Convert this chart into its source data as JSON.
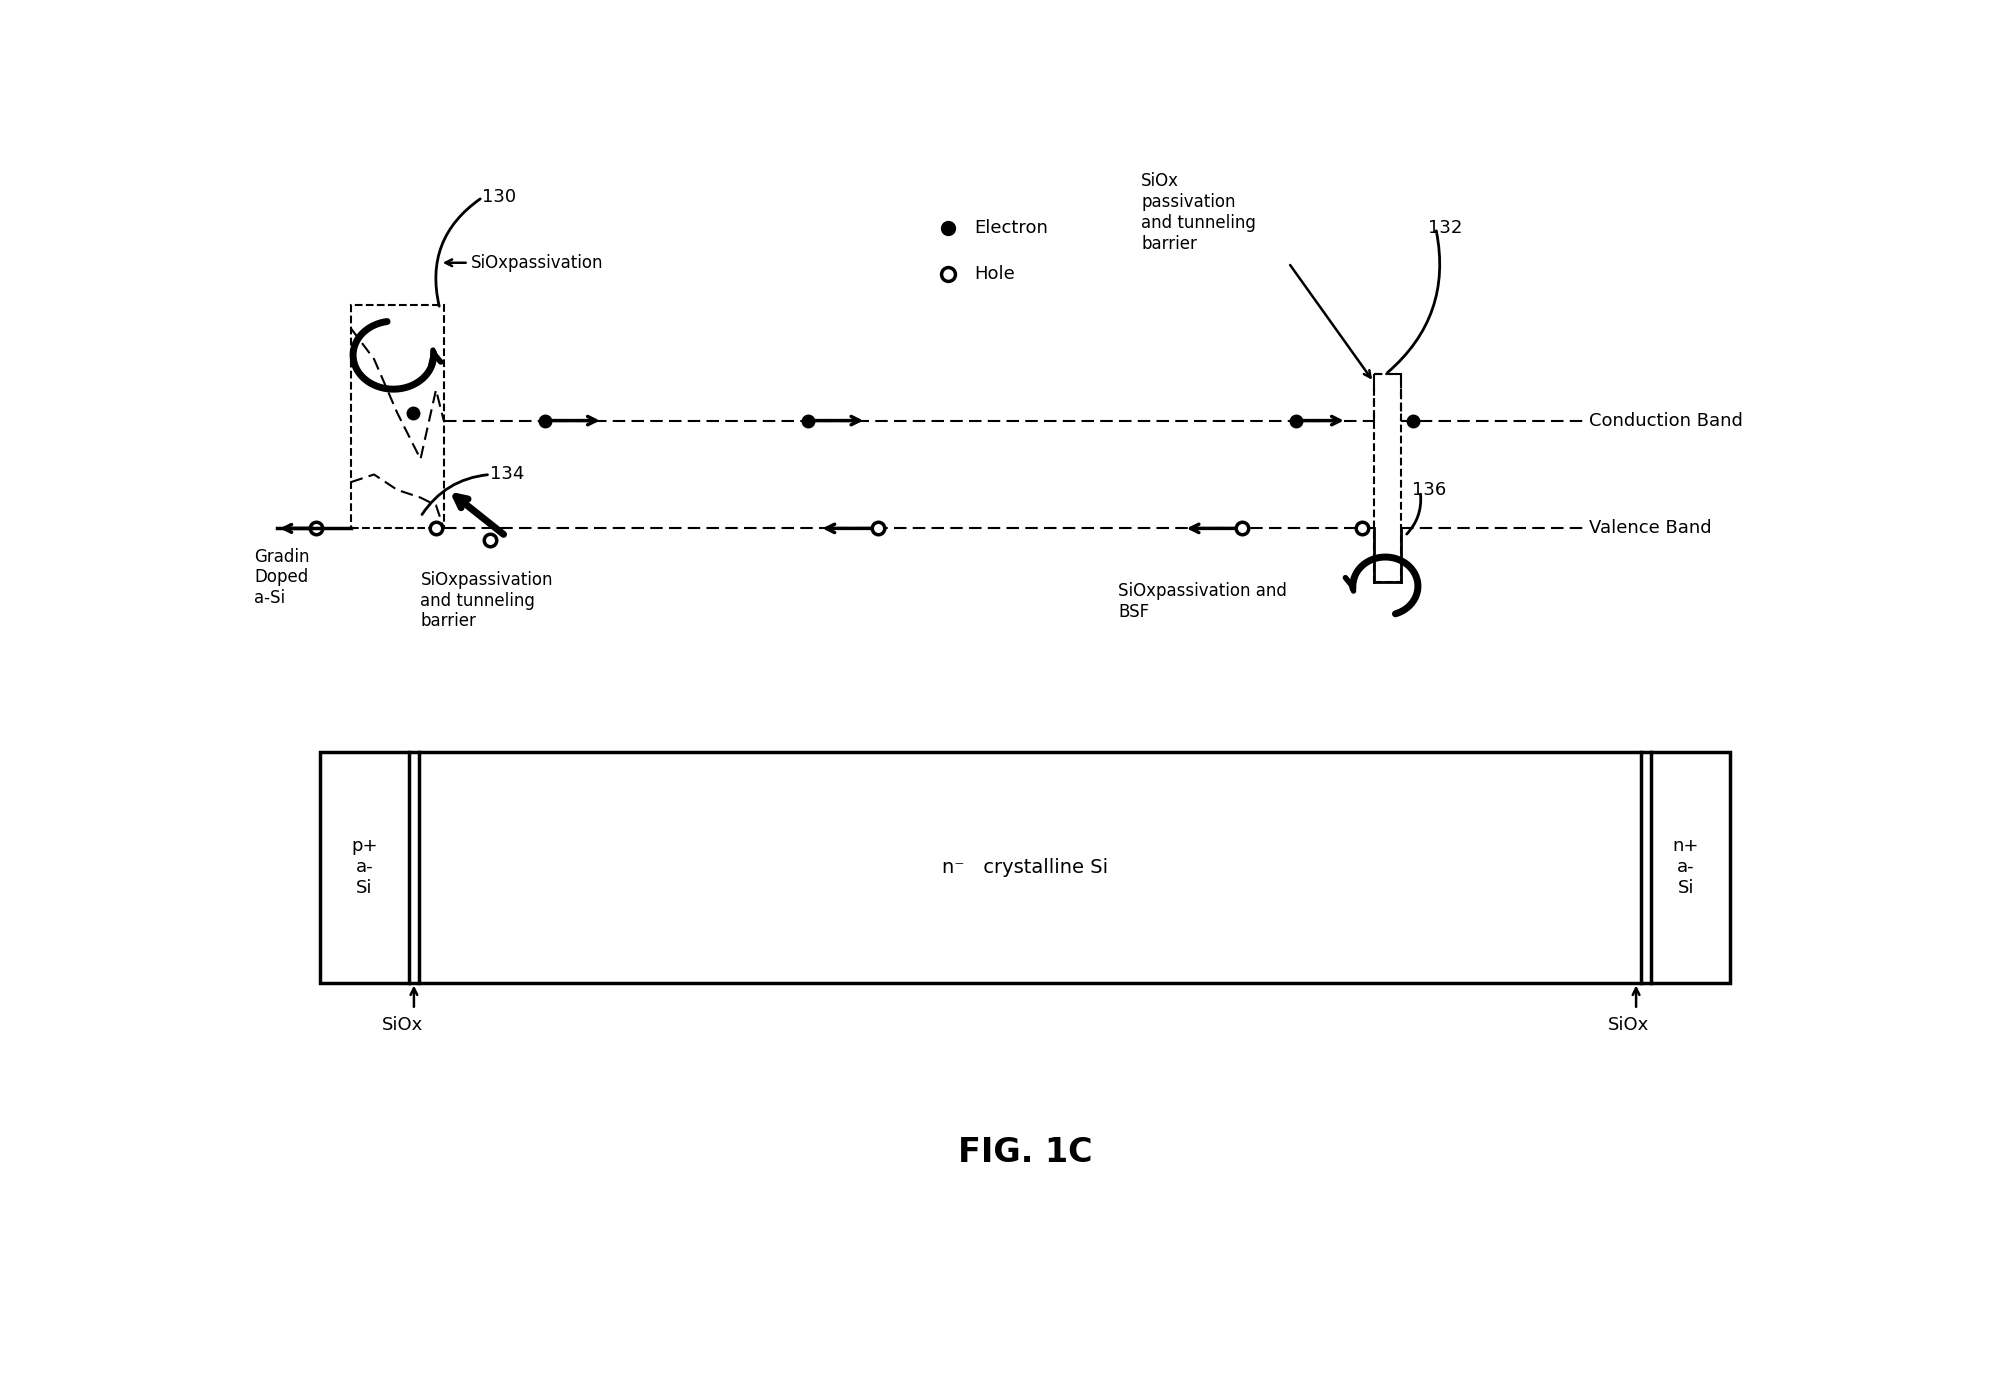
{
  "fig_width": 20.0,
  "fig_height": 13.81,
  "bg_color": "#ffffff",
  "title": "FIG. 1C",
  "title_fontsize": 24,
  "legend_electron": "Electron",
  "legend_hole": "Hole",
  "label_130": "130",
  "label_132": "132",
  "label_134": "134",
  "label_136": "136",
  "label_siox_passivation": "SiOxpassivation",
  "label_siox_passivation_tunneling_top": "SiOx\npassivation\nand tunneling\nbarrier",
  "label_siox_passivation_tunneling_left": "SiOxpassivation\nand tunneling\nbarrier",
  "label_conduction_band": "Conduction Band",
  "label_valence_band": "Valence Band",
  "label_gradin": "Gradin\nDoped\na-Si",
  "label_siox_bsf": "SiOxpassivation and\nBSF",
  "label_p_plus": "p+\na-\nSi",
  "label_n_minus": "n⁻   crystalline Si",
  "label_n_plus": "n+\na-\nSi",
  "label_siox_bottom_left": "SiOx",
  "label_siox_bottom_right": "SiOx"
}
